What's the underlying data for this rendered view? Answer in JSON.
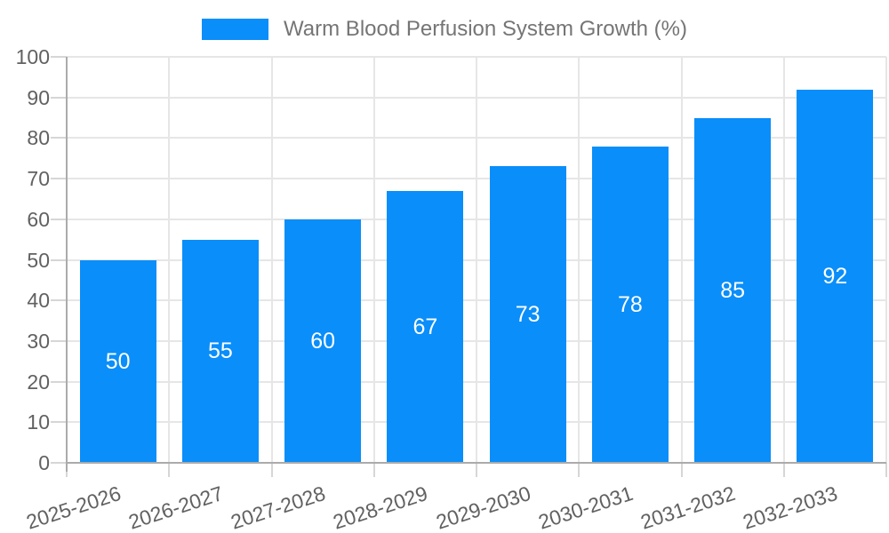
{
  "chart_data": {
    "type": "bar",
    "title": "",
    "legend_label": "Warm Blood Perfusion System Growth (%)",
    "legend_position": "top",
    "categories": [
      "2025-2026",
      "2026-2027",
      "2027-2028",
      "2028-2029",
      "2029-2030",
      "2030-2031",
      "2031-2032",
      "2032-2033"
    ],
    "values": [
      50,
      55,
      60,
      67,
      73,
      78,
      85,
      92
    ],
    "xlabel": "",
    "ylabel": "",
    "ylim": [
      0,
      100
    ],
    "yticks": [
      0,
      10,
      20,
      30,
      40,
      50,
      60,
      70,
      80,
      90,
      100
    ],
    "grid": true,
    "colors": {
      "bar": "#0a8ef9",
      "grid": "#e6e6e6",
      "tick": "#d6d6d6",
      "axis": "#ababab",
      "axis_label": "#616161",
      "legend_text": "#757575",
      "value_label": "#ffffff",
      "background": "#ffffff"
    }
  }
}
